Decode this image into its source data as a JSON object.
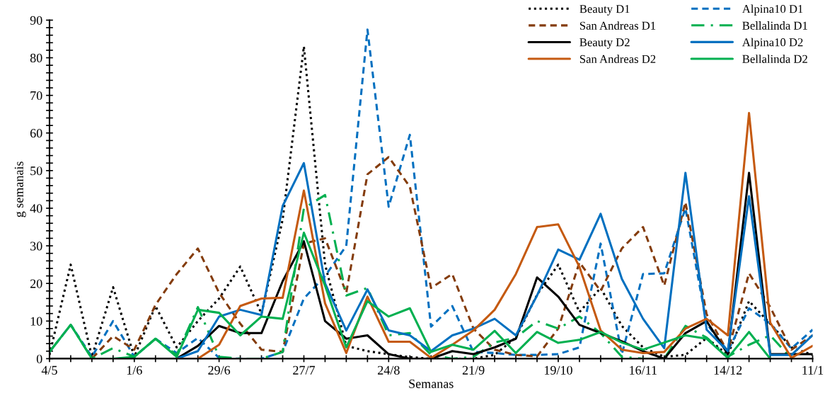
{
  "chart_data": {
    "type": "line",
    "xlabel": "Semanas",
    "ylabel": "g semanais",
    "categories": [
      "4/5",
      null,
      null,
      null,
      "1/6",
      null,
      null,
      null,
      "29/6",
      null,
      null,
      null,
      "27/7",
      null,
      null,
      null,
      "24/8",
      null,
      null,
      null,
      "21/9",
      null,
      null,
      null,
      "19/10",
      null,
      null,
      null,
      "16/11",
      null,
      null,
      null,
      "14/12",
      null,
      null,
      null,
      "11/1"
    ],
    "ylim": [
      0,
      90
    ],
    "yticks": [
      0,
      {
        "value": 2,
        "label": null
      },
      {
        "value": 4,
        "label": null
      },
      {
        "value": 6,
        "label": null
      },
      {
        "value": 8,
        "label": null
      },
      10,
      {
        "value": 12,
        "label": null
      },
      {
        "value": 14,
        "label": null
      },
      {
        "value": 16,
        "label": null
      },
      {
        "value": 18,
        "label": null
      },
      20,
      {
        "value": 22,
        "label": null
      },
      {
        "value": 24,
        "label": null
      },
      {
        "value": 26,
        "label": null
      },
      {
        "value": 28,
        "label": null
      },
      30,
      {
        "value": 32,
        "label": null
      },
      {
        "value": 34,
        "label": null
      },
      {
        "value": 36,
        "label": null
      },
      {
        "value": 38,
        "label": null
      },
      40,
      {
        "value": 42,
        "label": null
      },
      {
        "value": 44,
        "label": null
      },
      {
        "value": 46,
        "label": null
      },
      {
        "value": 48,
        "label": null
      },
      50,
      {
        "value": 52,
        "label": null
      },
      {
        "value": 54,
        "label": null
      },
      {
        "value": 56,
        "label": null
      },
      {
        "value": 58,
        "label": null
      },
      60,
      {
        "value": 62,
        "label": null
      },
      {
        "value": 64,
        "label": null
      },
      {
        "value": 66,
        "label": null
      },
      {
        "value": 68,
        "label": null
      },
      70,
      {
        "value": 72,
        "label": null
      },
      {
        "value": 74,
        "label": null
      },
      {
        "value": 76,
        "label": null
      },
      {
        "value": 78,
        "label": null
      },
      80,
      {
        "value": 82,
        "label": null
      },
      {
        "value": 84,
        "label": null
      },
      {
        "value": 86,
        "label": null
      },
      {
        "value": 88,
        "label": null
      },
      90
    ],
    "grid": false,
    "legend": "top right",
    "marker": "none",
    "series": [
      {
        "name": "Beauty D1",
        "color": "#000000",
        "line_style": "dotted",
        "values": [
          1,
          25,
          0.5,
          19,
          0.5,
          14,
          3,
          10,
          16,
          24.5,
          12,
          37,
          83,
          25,
          3.4,
          2,
          1.2,
          0.4,
          0,
          0,
          0,
          1,
          5.6,
          17,
          25,
          12.4,
          18.8,
          8.7,
          3,
          0.5,
          1,
          5.5,
          1,
          15.3,
          9.3,
          3,
          1
        ]
      },
      {
        "name": "Alpina10 D1",
        "color": "#0070c0",
        "line_style": "dashed",
        "values": [
          1.8,
          9,
          0.5,
          10,
          0.5,
          5.3,
          1.5,
          5.5,
          0.2,
          0,
          0,
          1.8,
          16,
          22,
          30,
          87.5,
          40.4,
          59.5,
          8.5,
          14,
          1.8,
          1.5,
          1,
          1,
          1.2,
          3,
          30.6,
          1.2,
          22.5,
          22.7,
          40,
          9.3,
          2,
          13.4,
          9.3,
          2.7,
          7.7
        ]
      },
      {
        "name": "San Andreas D1",
        "color": "#843c0c",
        "line_style": "dashed",
        "values": [
          0,
          0,
          0,
          6,
          2.4,
          14.3,
          22.5,
          29.3,
          17.5,
          9.3,
          2.4,
          1.8,
          30.6,
          32,
          17.5,
          49,
          53.6,
          45.7,
          18.8,
          22.5,
          8,
          2.4,
          1,
          0.6,
          8,
          25.6,
          18,
          29.3,
          35,
          19.4,
          41.6,
          11.8,
          1.8,
          22.7,
          13.7,
          2.4,
          6.2
        ]
      },
      {
        "name": "Bellalinda D1",
        "color": "#00b050",
        "line_style": "dashdot",
        "values": [
          1.8,
          9,
          0,
          2.8,
          0.5,
          5.3,
          1,
          13.7,
          0.5,
          0,
          0,
          1.8,
          40,
          43.5,
          16.8,
          18.8,
          6.2,
          6.8,
          1,
          0,
          0.5,
          4.3,
          5.6,
          10,
          8,
          11.2,
          6.8,
          0.5,
          0,
          0,
          8.7,
          5.6,
          0.5,
          3.7,
          6.2,
          0,
          null
        ]
      },
      {
        "name": "Beauty D2",
        "color": "#000000",
        "line_style": "solid",
        "values": [
          0,
          0,
          0,
          0,
          0,
          0,
          0,
          3.4,
          8.7,
          6.8,
          6.8,
          20.6,
          31.2,
          10,
          5.3,
          6.2,
          1.2,
          0,
          0,
          2,
          1.2,
          3,
          5.3,
          21.6,
          16.5,
          9,
          6.8,
          4.6,
          2,
          0,
          6.8,
          10,
          1.2,
          49.4,
          1.2,
          1.2,
          1.2
        ]
      },
      {
        "name": "Alpina10 D2",
        "color": "#0070c0",
        "line_style": "solid",
        "values": [
          null,
          null,
          null,
          null,
          null,
          null,
          0,
          2,
          11.2,
          13,
          11.6,
          40.6,
          52,
          20,
          7.5,
          18.4,
          7.5,
          6.2,
          2,
          6.2,
          8,
          10.6,
          6.2,
          16.8,
          29,
          26.3,
          38.5,
          21.2,
          10.6,
          2.8,
          49.4,
          7.7,
          2,
          43.2,
          1,
          1,
          6.2
        ]
      },
      {
        "name": "San Andreas D2",
        "color": "#c55a11",
        "line_style": "solid",
        "values": [
          null,
          null,
          null,
          null,
          null,
          null,
          0,
          0,
          3.7,
          14,
          16,
          16.2,
          44.7,
          14.7,
          1.5,
          16.5,
          4.5,
          4.5,
          0.2,
          3.7,
          7.5,
          13,
          22.5,
          35,
          35.7,
          24.4,
          7.5,
          2.4,
          1.5,
          1.8,
          8,
          10.6,
          6.2,
          65.3,
          9.6,
          0.2,
          3.4
        ]
      },
      {
        "name": "Bellalinda D2",
        "color": "#00b050",
        "line_style": "solid",
        "values": [
          1.8,
          9,
          0,
          0,
          0.5,
          5.3,
          0.5,
          13,
          12.2,
          6.2,
          11.2,
          10.6,
          33.5,
          19.4,
          3,
          15.3,
          11.2,
          13.4,
          1.8,
          3.7,
          2.4,
          7.4,
          1.5,
          7.1,
          4.2,
          5,
          7.1,
          4.3,
          2.4,
          4.3,
          6.2,
          5.3,
          0.2,
          7.1,
          0,
          null,
          null
        ]
      }
    ]
  }
}
